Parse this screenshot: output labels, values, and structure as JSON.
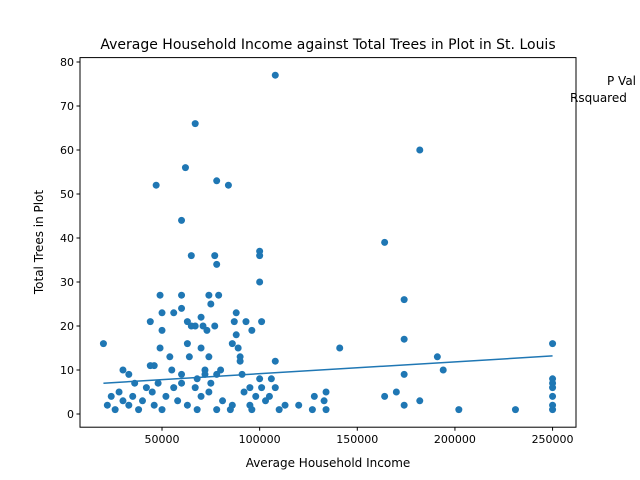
{
  "chart_data": {
    "type": "scatter",
    "title": "Average Household Income against Total Trees in Plot in St. Louis",
    "xlabel": "Average Household Income",
    "ylabel": "Total Trees in Plot",
    "xlim": [
      8000,
      262000
    ],
    "ylim": [
      -3,
      81
    ],
    "xticks": [
      50000,
      100000,
      150000,
      200000,
      250000
    ],
    "xtick_labels": [
      "50000",
      "100000",
      "150000",
      "200000",
      "250000"
    ],
    "yticks": [
      0,
      10,
      20,
      30,
      40,
      50,
      60,
      70,
      80
    ],
    "ytick_labels": [
      "0",
      "10",
      "20",
      "30",
      "40",
      "50",
      "60",
      "70",
      "80"
    ],
    "grid": false,
    "point_color": "#1f77b4",
    "annotations": [
      "P Val",
      "Rsquared"
    ],
    "fit_line": {
      "x": [
        20000,
        250000
      ],
      "y": [
        7.0,
        13.2
      ]
    },
    "points": [
      [
        20000,
        16
      ],
      [
        108000,
        77
      ],
      [
        67000,
        66
      ],
      [
        182000,
        60
      ],
      [
        62000,
        56
      ],
      [
        47000,
        52
      ],
      [
        78000,
        53
      ],
      [
        84000,
        52
      ],
      [
        60000,
        44
      ],
      [
        164000,
        39
      ],
      [
        65000,
        36
      ],
      [
        100000,
        37
      ],
      [
        100000,
        36
      ],
      [
        77000,
        36
      ],
      [
        78000,
        34
      ],
      [
        100000,
        30
      ],
      [
        49000,
        27
      ],
      [
        60000,
        27
      ],
      [
        74000,
        27
      ],
      [
        79000,
        27
      ],
      [
        174000,
        26
      ],
      [
        75000,
        25
      ],
      [
        60000,
        24
      ],
      [
        56000,
        23
      ],
      [
        50000,
        23
      ],
      [
        88000,
        23
      ],
      [
        70000,
        22
      ],
      [
        63000,
        21
      ],
      [
        44000,
        21
      ],
      [
        87000,
        21
      ],
      [
        101000,
        21
      ],
      [
        93000,
        21
      ],
      [
        67000,
        20
      ],
      [
        77000,
        20
      ],
      [
        71000,
        20
      ],
      [
        65000,
        20
      ],
      [
        50000,
        19
      ],
      [
        96000,
        19
      ],
      [
        73000,
        19
      ],
      [
        88000,
        18
      ],
      [
        174000,
        17
      ],
      [
        63000,
        16
      ],
      [
        86000,
        16
      ],
      [
        250000,
        16
      ],
      [
        49000,
        15
      ],
      [
        70000,
        15
      ],
      [
        89000,
        15
      ],
      [
        141000,
        15
      ],
      [
        54000,
        13
      ],
      [
        64000,
        13
      ],
      [
        90000,
        13
      ],
      [
        74000,
        13
      ],
      [
        191000,
        13
      ],
      [
        90000,
        12
      ],
      [
        108000,
        12
      ],
      [
        44000,
        11
      ],
      [
        46000,
        11
      ],
      [
        80000,
        10
      ],
      [
        72000,
        10
      ],
      [
        55000,
        10
      ],
      [
        194000,
        10
      ],
      [
        30000,
        10
      ],
      [
        91000,
        9
      ],
      [
        60000,
        9
      ],
      [
        72000,
        9
      ],
      [
        33000,
        9
      ],
      [
        78000,
        9
      ],
      [
        174000,
        9
      ],
      [
        68000,
        8
      ],
      [
        100000,
        8
      ],
      [
        106000,
        8
      ],
      [
        250000,
        8
      ],
      [
        36000,
        7
      ],
      [
        48000,
        7
      ],
      [
        60000,
        7
      ],
      [
        75000,
        7
      ],
      [
        250000,
        7
      ],
      [
        42000,
        6
      ],
      [
        56000,
        6
      ],
      [
        67000,
        6
      ],
      [
        95000,
        6
      ],
      [
        101000,
        6
      ],
      [
        108000,
        6
      ],
      [
        250000,
        6
      ],
      [
        28000,
        5
      ],
      [
        45000,
        5
      ],
      [
        74000,
        5
      ],
      [
        92000,
        5
      ],
      [
        134000,
        5
      ],
      [
        170000,
        5
      ],
      [
        24000,
        4
      ],
      [
        35000,
        4
      ],
      [
        52000,
        4
      ],
      [
        70000,
        4
      ],
      [
        98000,
        4
      ],
      [
        105000,
        4
      ],
      [
        128000,
        4
      ],
      [
        164000,
        4
      ],
      [
        250000,
        4
      ],
      [
        30000,
        3
      ],
      [
        40000,
        3
      ],
      [
        58000,
        3
      ],
      [
        81000,
        3
      ],
      [
        103000,
        3
      ],
      [
        133000,
        3
      ],
      [
        182000,
        3
      ],
      [
        22000,
        2
      ],
      [
        33000,
        2
      ],
      [
        46000,
        2
      ],
      [
        63000,
        2
      ],
      [
        86000,
        2
      ],
      [
        95000,
        2
      ],
      [
        113000,
        2
      ],
      [
        120000,
        2
      ],
      [
        174000,
        2
      ],
      [
        250000,
        2
      ],
      [
        26000,
        1
      ],
      [
        38000,
        1
      ],
      [
        50000,
        1
      ],
      [
        68000,
        1
      ],
      [
        78000,
        1
      ],
      [
        85000,
        1
      ],
      [
        96000,
        1
      ],
      [
        110000,
        1
      ],
      [
        127000,
        1
      ],
      [
        134000,
        1
      ],
      [
        202000,
        1
      ],
      [
        231000,
        1
      ],
      [
        250000,
        1
      ]
    ]
  }
}
